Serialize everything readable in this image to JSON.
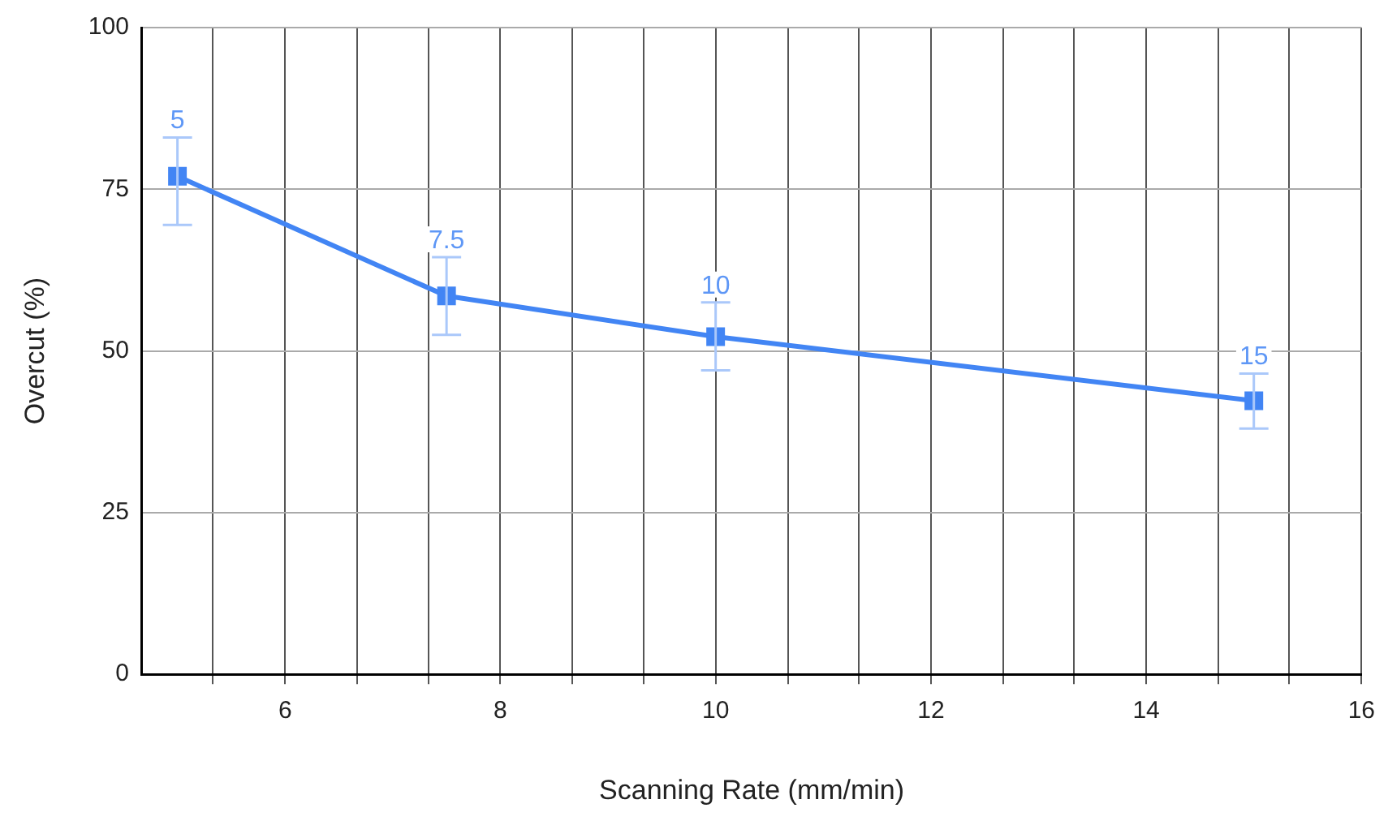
{
  "chart_data": {
    "type": "line",
    "xlabel": "Scanning Rate (mm/min)",
    "ylabel": "Overcut (%)",
    "x": [
      5,
      7.5,
      10,
      15
    ],
    "series": [
      {
        "color": "#4285f4",
        "values": [
          77,
          58.5,
          52.2,
          42.3
        ],
        "errors": [
          [
            69.5,
            83
          ],
          [
            52.5,
            64.5
          ],
          [
            47,
            57.5
          ],
          [
            38,
            46.5
          ]
        ]
      }
    ],
    "annotations": [
      {
        "text": "5",
        "x": 5,
        "y": 83
      },
      {
        "text": "7.5",
        "x": 7.5,
        "y": 64.5
      },
      {
        "text": "10",
        "x": 10,
        "y": 57.5
      },
      {
        "text": "15",
        "x": 15,
        "y": 46.5
      }
    ],
    "xlim": [
      4.67,
      16
    ],
    "xticks": [
      {
        "value": 5.33,
        "label": null
      },
      6,
      {
        "value": 6.67,
        "label": null
      },
      {
        "value": 7.33,
        "label": null
      },
      8,
      {
        "value": 8.67,
        "label": null
      },
      {
        "value": 9.33,
        "label": null
      },
      10,
      {
        "value": 10.67,
        "label": null
      },
      {
        "value": 11.33,
        "label": null
      },
      12,
      {
        "value": 12.67,
        "label": null
      },
      {
        "value": 13.33,
        "label": null
      },
      14,
      {
        "value": 14.67,
        "label": null
      },
      {
        "value": 15.33,
        "label": null
      },
      16
    ],
    "ylim": [
      0,
      100
    ],
    "yticks": [
      0,
      25,
      50,
      75,
      100
    ],
    "grid": true,
    "marker": "square",
    "line_style": "solid",
    "legend": false
  }
}
